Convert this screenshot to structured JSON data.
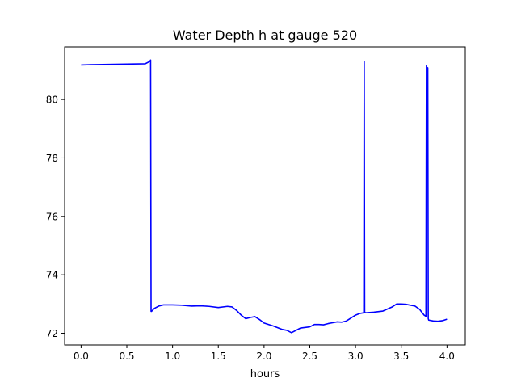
{
  "chart_data": {
    "type": "line",
    "title": "Water Depth h at gauge 520",
    "xlabel": "hours",
    "ylabel": "",
    "xlim": [
      -0.18,
      4.2
    ],
    "ylim": [
      71.6,
      81.8
    ],
    "xticks": [
      0.0,
      0.5,
      1.0,
      1.5,
      2.0,
      2.5,
      3.0,
      3.5,
      4.0
    ],
    "xtick_labels": [
      "0.0",
      "0.5",
      "1.0",
      "1.5",
      "2.0",
      "2.5",
      "3.0",
      "3.5",
      "4.0"
    ],
    "yticks": [
      72,
      74,
      76,
      78,
      80
    ],
    "ytick_labels": [
      "72",
      "74",
      "76",
      "78",
      "80"
    ],
    "grid": false,
    "legend": false,
    "series": [
      {
        "color": "#0000ff",
        "x": [
          0.0,
          0.1,
          0.3,
          0.5,
          0.7,
          0.75,
          0.76,
          0.765,
          0.77,
          0.8,
          0.85,
          0.9,
          0.95,
          1.0,
          1.1,
          1.2,
          1.3,
          1.4,
          1.5,
          1.6,
          1.65,
          1.7,
          1.75,
          1.8,
          1.85,
          1.9,
          1.95,
          2.0,
          2.1,
          2.2,
          2.25,
          2.3,
          2.4,
          2.5,
          2.55,
          2.6,
          2.65,
          2.7,
          2.75,
          2.8,
          2.85,
          2.9,
          2.95,
          3.0,
          3.05,
          3.09,
          3.095,
          3.1,
          3.11,
          3.2,
          3.3,
          3.35,
          3.4,
          3.45,
          3.5,
          3.55,
          3.6,
          3.65,
          3.7,
          3.75,
          3.77,
          3.775,
          3.78,
          3.79,
          3.795,
          3.8,
          3.85,
          3.9,
          3.95,
          4.0
        ],
        "y": [
          81.18,
          81.19,
          81.2,
          81.21,
          81.22,
          81.3,
          81.35,
          72.75,
          72.75,
          72.85,
          72.93,
          72.97,
          72.97,
          72.97,
          72.96,
          72.93,
          72.94,
          72.92,
          72.88,
          72.92,
          72.9,
          72.78,
          72.62,
          72.5,
          72.54,
          72.57,
          72.47,
          72.35,
          72.25,
          72.13,
          72.1,
          72.02,
          72.18,
          72.22,
          72.3,
          72.3,
          72.29,
          72.33,
          72.36,
          72.39,
          72.38,
          72.42,
          72.52,
          72.62,
          72.68,
          72.7,
          81.3,
          72.72,
          72.7,
          72.72,
          72.76,
          72.83,
          72.9,
          73.0,
          73.0,
          72.99,
          72.96,
          72.93,
          72.82,
          72.62,
          72.58,
          81.15,
          81.1,
          81.08,
          72.5,
          72.45,
          72.42,
          72.41,
          72.43,
          72.48
        ]
      }
    ]
  }
}
